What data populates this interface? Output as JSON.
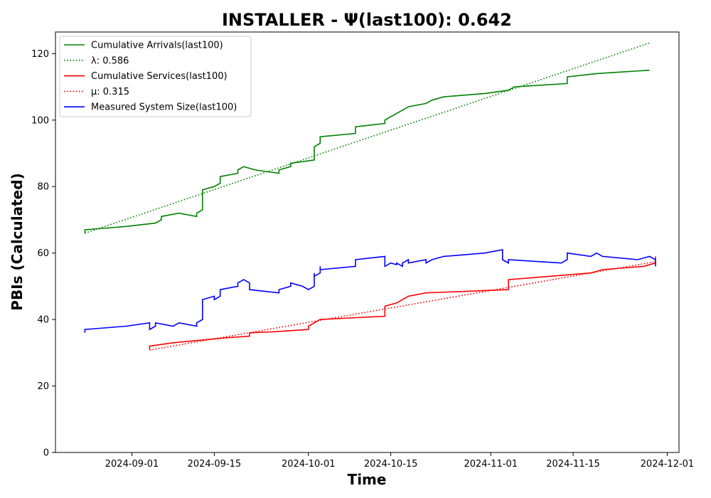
{
  "chart_data": {
    "type": "line",
    "title": "INSTALLER -  Ψ(last100): 0.642",
    "xlabel": "Time",
    "ylabel": "PBIs (Calculated)",
    "xlim": [
      "2024-08-19",
      "2024-12-03"
    ],
    "ylim": [
      0,
      126.5
    ],
    "x_ticks": [
      "2024-09-01",
      "2024-09-15",
      "2024-10-01",
      "2024-10-15",
      "2024-11-01",
      "2024-11-15",
      "2024-12-01"
    ],
    "y_ticks": [
      0,
      20,
      40,
      60,
      80,
      100,
      120
    ],
    "grid": false,
    "legend_position": "top-left",
    "series": [
      {
        "name": "Cumulative Arrivals(last100)",
        "color": "#008000",
        "style": "solid",
        "points": [
          [
            "2024-08-24",
            66
          ],
          [
            "2024-08-24",
            67
          ],
          [
            "2024-08-31",
            68
          ],
          [
            "2024-09-05",
            69
          ],
          [
            "2024-09-06",
            70
          ],
          [
            "2024-09-06",
            71
          ],
          [
            "2024-09-09",
            72
          ],
          [
            "2024-09-12",
            71
          ],
          [
            "2024-09-12",
            72
          ],
          [
            "2024-09-13",
            73
          ],
          [
            "2024-09-13",
            79
          ],
          [
            "2024-09-15",
            80
          ],
          [
            "2024-09-16",
            81
          ],
          [
            "2024-09-16",
            83
          ],
          [
            "2024-09-19",
            84
          ],
          [
            "2024-09-19",
            85
          ],
          [
            "2024-09-20",
            86
          ],
          [
            "2024-09-22",
            85
          ],
          [
            "2024-09-26",
            84
          ],
          [
            "2024-09-26",
            85
          ],
          [
            "2024-09-28",
            86
          ],
          [
            "2024-09-28",
            87
          ],
          [
            "2024-10-02",
            88
          ],
          [
            "2024-10-02",
            92
          ],
          [
            "2024-10-03",
            93
          ],
          [
            "2024-10-03",
            95
          ],
          [
            "2024-10-09",
            96
          ],
          [
            "2024-10-09",
            98
          ],
          [
            "2024-10-14",
            99
          ],
          [
            "2024-10-14",
            100
          ],
          [
            "2024-10-15",
            101
          ],
          [
            "2024-10-17",
            103
          ],
          [
            "2024-10-18",
            104
          ],
          [
            "2024-10-21",
            105
          ],
          [
            "2024-10-22",
            106
          ],
          [
            "2024-10-24",
            107
          ],
          [
            "2024-10-31",
            108
          ],
          [
            "2024-11-04",
            109
          ],
          [
            "2024-11-05",
            110
          ],
          [
            "2024-11-14",
            111
          ],
          [
            "2024-11-14",
            113
          ],
          [
            "2024-11-19",
            114
          ],
          [
            "2024-11-28",
            115
          ]
        ]
      },
      {
        "name": "λ: 0.586",
        "color": "#008000",
        "style": "dotted",
        "points": [
          [
            "2024-08-24",
            66
          ],
          [
            "2024-11-28",
            123.2
          ]
        ]
      },
      {
        "name": "Cumulative Services(last100)",
        "color": "#ff0000",
        "style": "solid",
        "points": [
          [
            "2024-09-04",
            31
          ],
          [
            "2024-09-04",
            32
          ],
          [
            "2024-09-08",
            33
          ],
          [
            "2024-09-17",
            34.5
          ],
          [
            "2024-09-21",
            35
          ],
          [
            "2024-09-21",
            36
          ],
          [
            "2024-09-25",
            36.3
          ],
          [
            "2024-10-01",
            37
          ],
          [
            "2024-10-01",
            38
          ],
          [
            "2024-10-03",
            40
          ],
          [
            "2024-10-14",
            41
          ],
          [
            "2024-10-14",
            44
          ],
          [
            "2024-10-16",
            45
          ],
          [
            "2024-10-18",
            47
          ],
          [
            "2024-10-21",
            48
          ],
          [
            "2024-11-04",
            49
          ],
          [
            "2024-11-04",
            52
          ],
          [
            "2024-11-18",
            54
          ],
          [
            "2024-11-20",
            55
          ],
          [
            "2024-11-27",
            56
          ],
          [
            "2024-11-29",
            57
          ],
          [
            "2024-11-29",
            59
          ]
        ]
      },
      {
        "name": "μ: 0.315",
        "color": "#ff0000",
        "style": "dotted",
        "points": [
          [
            "2024-09-04",
            30.8
          ],
          [
            "2024-11-29",
            57.4
          ]
        ]
      },
      {
        "name": "Measured System Size(last100)",
        "color": "#0000ff",
        "style": "solid",
        "points": [
          [
            "2024-08-24",
            36
          ],
          [
            "2024-08-24",
            37
          ],
          [
            "2024-08-31",
            38
          ],
          [
            "2024-09-04",
            39
          ],
          [
            "2024-09-04",
            37
          ],
          [
            "2024-09-05",
            38
          ],
          [
            "2024-09-05",
            39
          ],
          [
            "2024-09-08",
            38
          ],
          [
            "2024-09-09",
            39
          ],
          [
            "2024-09-12",
            38
          ],
          [
            "2024-09-12",
            39
          ],
          [
            "2024-09-13",
            40
          ],
          [
            "2024-09-13",
            46
          ],
          [
            "2024-09-15",
            47
          ],
          [
            "2024-09-15",
            46
          ],
          [
            "2024-09-16",
            47
          ],
          [
            "2024-09-16",
            49
          ],
          [
            "2024-09-19",
            50
          ],
          [
            "2024-09-19",
            51
          ],
          [
            "2024-09-20",
            52
          ],
          [
            "2024-09-21",
            51
          ],
          [
            "2024-09-21",
            49
          ],
          [
            "2024-09-26",
            48
          ],
          [
            "2024-09-26",
            49
          ],
          [
            "2024-09-28",
            50
          ],
          [
            "2024-09-28",
            51
          ],
          [
            "2024-09-30",
            50
          ],
          [
            "2024-10-01",
            49
          ],
          [
            "2024-10-02",
            50
          ],
          [
            "2024-10-02",
            54
          ],
          [
            "2024-10-02",
            53
          ],
          [
            "2024-10-03",
            54
          ],
          [
            "2024-10-03",
            56
          ],
          [
            "2024-10-03",
            55
          ],
          [
            "2024-10-09",
            56
          ],
          [
            "2024-10-09",
            58
          ],
          [
            "2024-10-14",
            59
          ],
          [
            "2024-10-14",
            56
          ],
          [
            "2024-10-15",
            57
          ],
          [
            "2024-10-16",
            56.5
          ],
          [
            "2024-10-16",
            57
          ],
          [
            "2024-10-17",
            56
          ],
          [
            "2024-10-17",
            57
          ],
          [
            "2024-10-18",
            58
          ],
          [
            "2024-10-18",
            57
          ],
          [
            "2024-10-21",
            58
          ],
          [
            "2024-10-21",
            57
          ],
          [
            "2024-10-22",
            58
          ],
          [
            "2024-10-24",
            59
          ],
          [
            "2024-10-31",
            60
          ],
          [
            "2024-11-03",
            61
          ],
          [
            "2024-11-03",
            58
          ],
          [
            "2024-11-04",
            57
          ],
          [
            "2024-11-04",
            58
          ],
          [
            "2024-11-13",
            57
          ],
          [
            "2024-11-14",
            58
          ],
          [
            "2024-11-14",
            60
          ],
          [
            "2024-11-18",
            59
          ],
          [
            "2024-11-19",
            60
          ],
          [
            "2024-11-20",
            59
          ],
          [
            "2024-11-26",
            58
          ],
          [
            "2024-11-28",
            59
          ],
          [
            "2024-11-29",
            58
          ],
          [
            "2024-11-29",
            56
          ]
        ]
      }
    ]
  }
}
